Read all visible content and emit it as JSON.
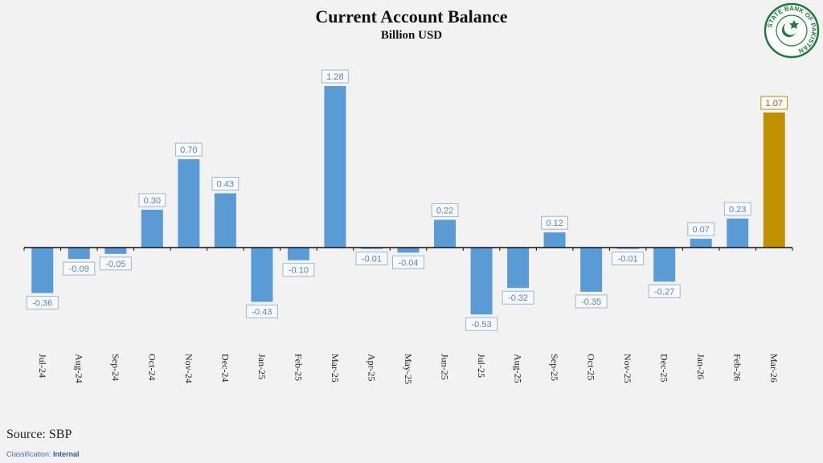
{
  "chart_data": {
    "type": "bar",
    "title": "Current Account Balance",
    "subtitle": "Billion USD",
    "categories": [
      "Jul-24",
      "Aug-24",
      "Sep-24",
      "Oct-24",
      "Nov-24",
      "Dec-24",
      "Jan-25",
      "Feb-25",
      "Mar-25",
      "Apr-25",
      "May-25",
      "Jun-25",
      "Jul-25",
      "Aug-25",
      "Sep-25",
      "Oct-25",
      "Nov-25",
      "Dec-25",
      "Jan-26",
      "Feb-26",
      "Mar-26"
    ],
    "values": [
      -0.36,
      -0.09,
      -0.05,
      0.3,
      0.7,
      0.43,
      -0.43,
      -0.1,
      1.28,
      -0.01,
      -0.04,
      0.22,
      -0.53,
      -0.32,
      0.12,
      -0.35,
      -0.01,
      -0.27,
      0.07,
      0.23,
      1.07
    ],
    "colors": {
      "default": "#5b9bd5",
      "highlight": "#bf9000",
      "label_border": "#9fb6cf",
      "label_text": "#5a86b8"
    },
    "highlight_index": 20,
    "grid": false
  },
  "footer": {
    "source": "Source: SBP",
    "classification_label": "Classification:",
    "classification_value": "Internal"
  },
  "logo": {
    "text": "STATE BANK OF PAKISTAN",
    "color": "#1e7a3c"
  }
}
